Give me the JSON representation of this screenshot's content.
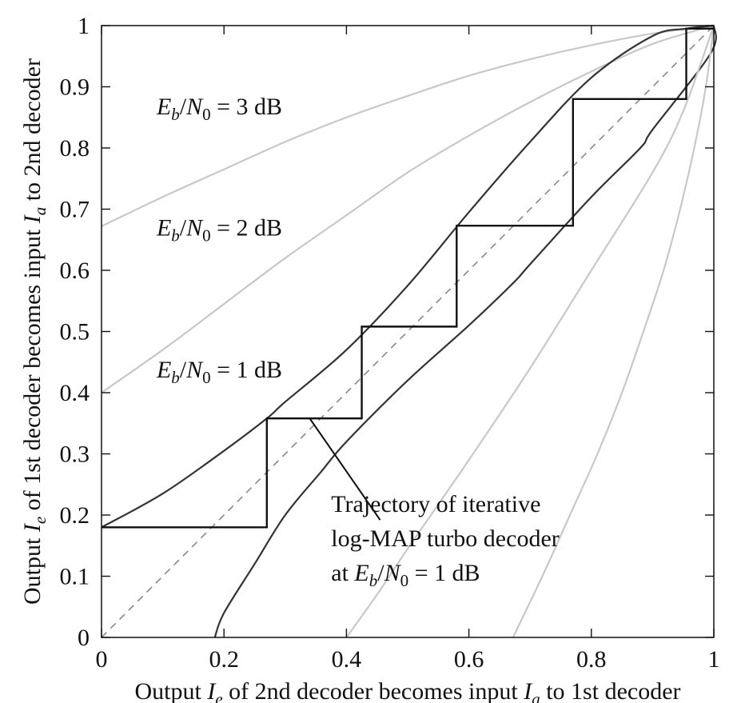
{
  "chart_data": {
    "type": "line",
    "title": "",
    "xlabel_parts": [
      "Output ",
      "I",
      "e",
      " of 2nd decoder becomes input ",
      "I",
      "a",
      " to 1st decoder"
    ],
    "ylabel_parts": [
      "Output ",
      "I",
      "e",
      " of 1st decoder becomes input ",
      "I",
      "a",
      " to 2nd decoder"
    ],
    "xlim": [
      0,
      1
    ],
    "ylim": [
      0,
      1
    ],
    "x_ticks": [
      0,
      0.2,
      0.4,
      0.6,
      0.8,
      1
    ],
    "y_ticks": [
      0,
      0.1,
      0.2,
      0.3,
      0.4,
      0.5,
      0.6,
      0.7,
      0.8,
      0.9,
      1
    ],
    "x_tick_labels": [
      "0",
      "0.2",
      "0.4",
      "0.6",
      "0.8",
      "1"
    ],
    "y_tick_labels": [
      "0",
      "0.1",
      "0.2",
      "0.3",
      "0.4",
      "0.5",
      "0.6",
      "0.7",
      "0.8",
      "0.9",
      "1"
    ],
    "grid": false,
    "colors": {
      "gray_curves": "#c8c8c8",
      "dark_curves": "#333333",
      "trajectory": "#111111",
      "diagonal": "#888888"
    },
    "series": [
      {
        "role": "decoder1-3dB",
        "style": "gray",
        "x": [
          0,
          0.1,
          0.2,
          0.3,
          0.4,
          0.5,
          0.6,
          0.7,
          0.8,
          0.9,
          1.0
        ],
        "y": [
          0.672,
          0.72,
          0.765,
          0.81,
          0.85,
          0.885,
          0.918,
          0.945,
          0.968,
          0.987,
          1.0
        ]
      },
      {
        "role": "decoder1-2dB",
        "style": "gray",
        "x": [
          0,
          0.1,
          0.2,
          0.3,
          0.4,
          0.5,
          0.6,
          0.7,
          0.8,
          0.9,
          1.0
        ],
        "y": [
          0.4,
          0.47,
          0.545,
          0.62,
          0.69,
          0.76,
          0.82,
          0.875,
          0.925,
          0.97,
          1.0
        ]
      },
      {
        "role": "decoder1-1dB",
        "style": "dark",
        "x": [
          0,
          0.1,
          0.2,
          0.27,
          0.3,
          0.4,
          0.5,
          0.6,
          0.7,
          0.8,
          0.9,
          0.955,
          1.0
        ],
        "y": [
          0.18,
          0.235,
          0.305,
          0.358,
          0.385,
          0.47,
          0.575,
          0.695,
          0.81,
          0.915,
          0.983,
          0.995,
          1.0
        ]
      },
      {
        "role": "decoder2-1dB",
        "style": "dark",
        "x": [
          0.185,
          0.2,
          0.25,
          0.3,
          0.358,
          0.4,
          0.5,
          0.6,
          0.673,
          0.7,
          0.8,
          0.88,
          0.9,
          0.995,
          1.0
        ],
        "y": [
          0.0,
          0.04,
          0.12,
          0.2,
          0.27,
          0.32,
          0.42,
          0.51,
          0.58,
          0.61,
          0.72,
          0.8,
          0.83,
          0.955,
          1.0
        ]
      },
      {
        "role": "decoder2-2dB",
        "style": "gray",
        "x": [
          0.4,
          0.45,
          0.5,
          0.6,
          0.7,
          0.8,
          0.9,
          0.95,
          1.0
        ],
        "y": [
          0.0,
          0.07,
          0.145,
          0.29,
          0.44,
          0.6,
          0.76,
          0.86,
          1.0
        ]
      },
      {
        "role": "decoder2-3dB",
        "style": "gray",
        "x": [
          0.672,
          0.72,
          0.765,
          0.81,
          0.85,
          0.885,
          0.918,
          0.945,
          0.968,
          0.987,
          1.0
        ],
        "y": [
          0.0,
          0.1,
          0.2,
          0.3,
          0.4,
          0.5,
          0.6,
          0.7,
          0.8,
          0.9,
          1.0
        ]
      },
      {
        "role": "diagonal",
        "style": "dashed",
        "x": [
          0,
          1
        ],
        "y": [
          0,
          1
        ]
      },
      {
        "role": "trajectory",
        "style": "staircase",
        "x": [
          0,
          0.27,
          0.27,
          0.425,
          0.425,
          0.58,
          0.58,
          0.77,
          0.77,
          0.955,
          0.955,
          1.0
        ],
        "y": [
          0.18,
          0.18,
          0.358,
          0.358,
          0.508,
          0.508,
          0.673,
          0.673,
          0.88,
          0.88,
          0.995,
          0.995
        ]
      }
    ],
    "curve_labels": [
      {
        "ratio_main": "E",
        "sub1": "b",
        "slash": "/",
        "n": "N",
        "sub2": "0",
        "rest": " = 3 dB",
        "x": 0.09,
        "y": 0.855
      },
      {
        "ratio_main": "E",
        "sub1": "b",
        "slash": "/",
        "n": "N",
        "sub2": "0",
        "rest": " = 2 dB",
        "x": 0.09,
        "y": 0.657
      },
      {
        "ratio_main": "E",
        "sub1": "b",
        "slash": "/",
        "n": "N",
        "sub2": "0",
        "rest": " = 1 dB",
        "x": 0.09,
        "y": 0.425
      }
    ],
    "annotation": {
      "line1": "Trajectory of iterative",
      "line2": "log-MAP turbo decoder",
      "line3_prefix": "at ",
      "line3_e": "E",
      "line3_sub1": "b",
      "line3_slash": "/",
      "line3_n": "N",
      "line3_sub2": "0",
      "line3_rest": " = 1 dB",
      "pointer_from": [
        0.34,
        0.358
      ],
      "pointer_to": [
        0.455,
        0.192
      ],
      "text_anchor": [
        0.375,
        0.205
      ]
    }
  }
}
